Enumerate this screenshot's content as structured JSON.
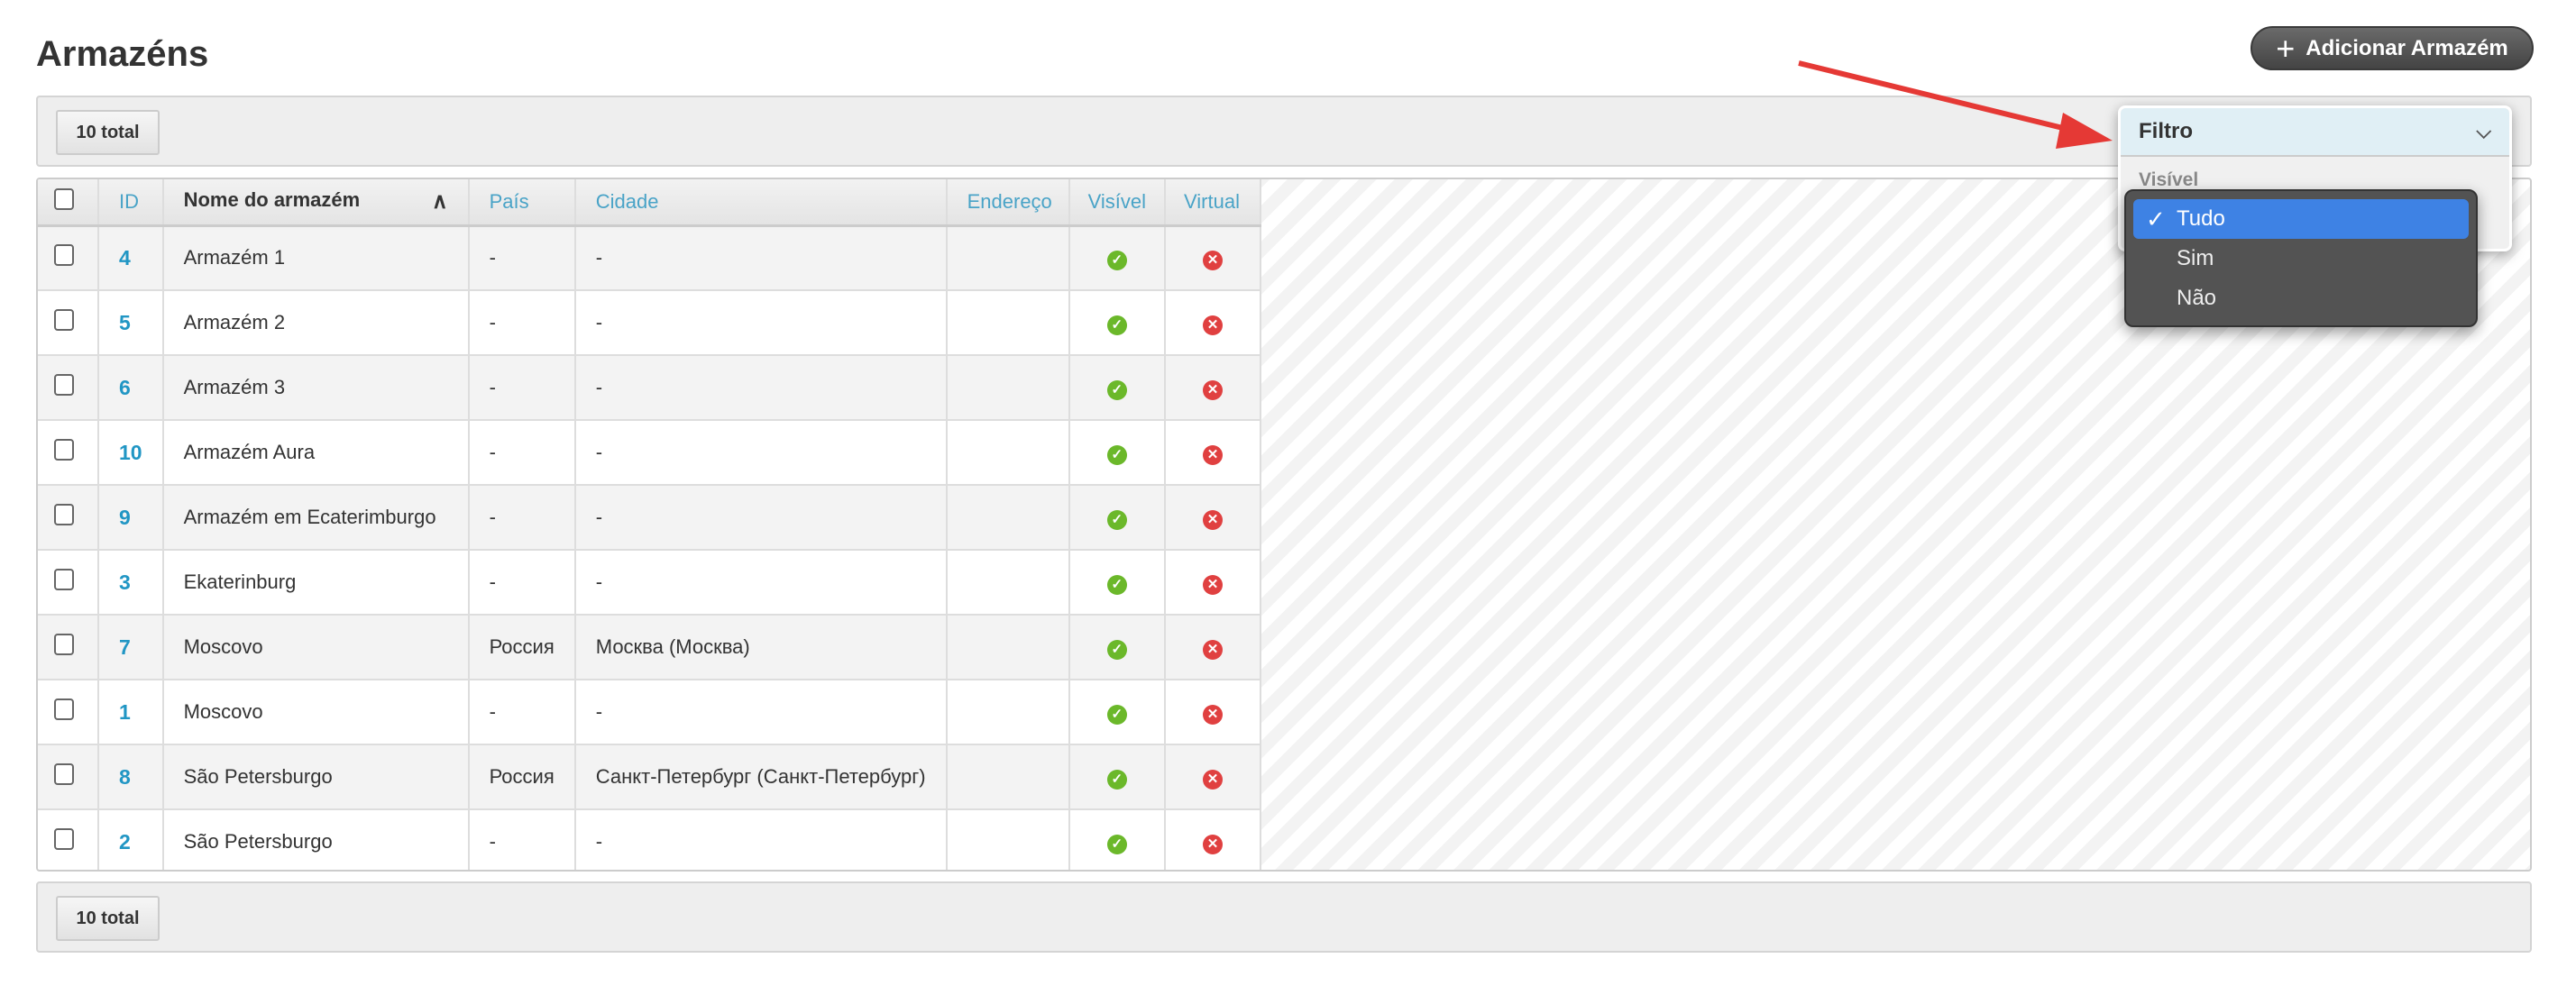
{
  "page": {
    "title": "Armazéns",
    "add_button": "Adicionar Armazém",
    "total": "10 total"
  },
  "table": {
    "headers": [
      "ID",
      "Nome do armazém",
      "País",
      "Cidade",
      "Endereço",
      "Visível",
      "Virtual"
    ],
    "rows": [
      {
        "id": "4",
        "name": "Armazém 1",
        "country": "-",
        "city": "-",
        "address": "",
        "visible": true,
        "virtual": false
      },
      {
        "id": "5",
        "name": "Armazém 2",
        "country": "-",
        "city": "-",
        "address": "",
        "visible": true,
        "virtual": false
      },
      {
        "id": "6",
        "name": "Armazém 3",
        "country": "-",
        "city": "-",
        "address": "",
        "visible": true,
        "virtual": false
      },
      {
        "id": "10",
        "name": "Armazém Aura",
        "country": "-",
        "city": "-",
        "address": "",
        "visible": true,
        "virtual": false
      },
      {
        "id": "9",
        "name": "Armazém em Ecaterimburgo",
        "country": "-",
        "city": "-",
        "address": "",
        "visible": true,
        "virtual": false
      },
      {
        "id": "3",
        "name": "Ekaterinburg",
        "country": "-",
        "city": "-",
        "address": "",
        "visible": true,
        "virtual": false
      },
      {
        "id": "7",
        "name": "Moscovo",
        "country": "Россия",
        "city": "Москва (Москва)",
        "address": "",
        "visible": true,
        "virtual": false
      },
      {
        "id": "1",
        "name": "Moscovo",
        "country": "-",
        "city": "-",
        "address": "",
        "visible": true,
        "virtual": false
      },
      {
        "id": "8",
        "name": "São Petersburgo",
        "country": "Россия",
        "city": "Санкт-Петербург (Санкт-Петербург)",
        "address": "",
        "visible": true,
        "virtual": false
      },
      {
        "id": "2",
        "name": "São Petersburgo",
        "country": "-",
        "city": "-",
        "address": "",
        "visible": true,
        "virtual": false
      }
    ]
  },
  "filter": {
    "title": "Filtro",
    "field_label": "Visível",
    "options": [
      "Tudo",
      "Sim",
      "Não"
    ],
    "selected": "Tudo"
  },
  "colors": {
    "accent": "#3e82e4",
    "link": "#2196c4",
    "ok": "#6bb82a",
    "no": "#e04040",
    "annotation_arrow": "#e53935"
  }
}
